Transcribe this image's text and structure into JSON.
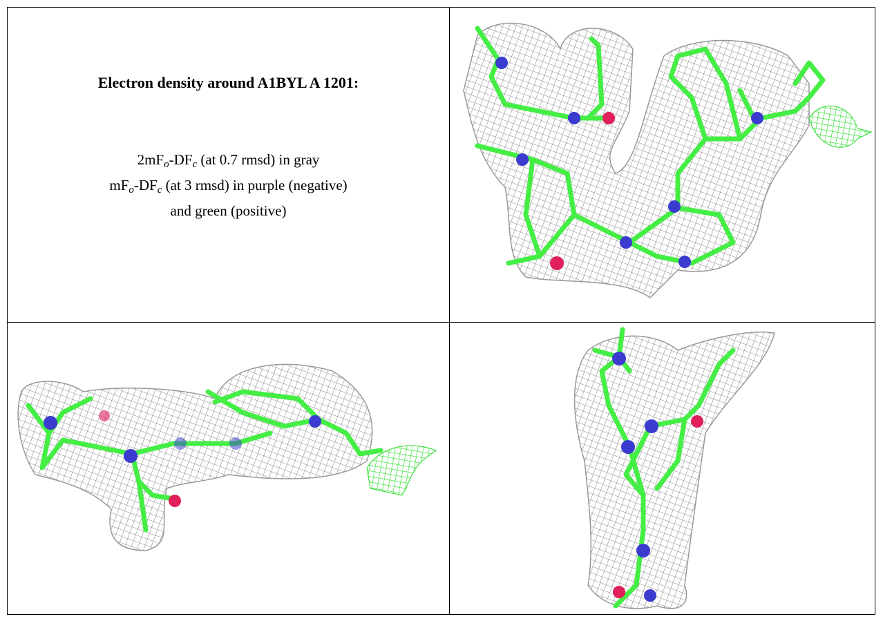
{
  "header": {
    "title": "Electron density around A1BYL A 1201:"
  },
  "legend": {
    "lines": [
      [
        "2mF",
        "o",
        "-DF",
        "c",
        " (at 0.7 rmsd) in gray"
      ],
      [
        "mF",
        "o",
        "-DF",
        "c",
        " (at 3 rmsd) in purple (negative)"
      ],
      [
        "and green (positive)"
      ]
    ]
  }
}
